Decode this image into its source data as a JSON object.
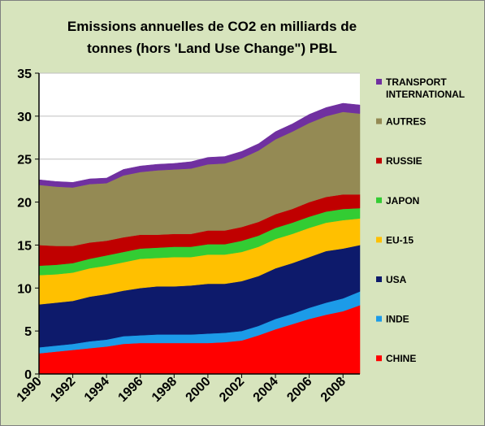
{
  "chart_data": {
    "type": "area",
    "stacked": true,
    "title_line1": "Emissions annuelles de CO2 en milliards de",
    "title_line2": "tonnes (hors  'Land Use Change\") PBL",
    "xlabel": "",
    "ylabel": "",
    "ylim": [
      0,
      35
    ],
    "yticks": [
      "0",
      "5",
      "10",
      "15",
      "20",
      "25",
      "30",
      "35"
    ],
    "xticks": [
      "1990",
      "1992",
      "1994",
      "1996",
      "1998",
      "2000",
      "2002",
      "2004",
      "2006",
      "2008"
    ],
    "x": [
      1990,
      1991,
      1992,
      1993,
      1994,
      1995,
      1996,
      1997,
      1998,
      1999,
      2000,
      2001,
      2002,
      2003,
      2004,
      2005,
      2006,
      2007,
      2008,
      2009
    ],
    "grid": "horizontal",
    "legend_position": "right",
    "series": [
      {
        "name": "CHINE",
        "color": "#ff0000",
        "values": [
          2.4,
          2.6,
          2.8,
          3.0,
          3.2,
          3.5,
          3.6,
          3.6,
          3.6,
          3.6,
          3.6,
          3.7,
          3.9,
          4.5,
          5.2,
          5.8,
          6.4,
          6.9,
          7.3,
          8.0
        ]
      },
      {
        "name": "INDE",
        "color": "#1c9be8",
        "values": [
          0.7,
          0.7,
          0.7,
          0.8,
          0.8,
          0.9,
          0.9,
          1.0,
          1.0,
          1.0,
          1.1,
          1.1,
          1.1,
          1.1,
          1.2,
          1.2,
          1.3,
          1.4,
          1.5,
          1.6
        ]
      },
      {
        "name": "USA",
        "color": "#0d1a6b",
        "values": [
          5.0,
          5.0,
          5.0,
          5.2,
          5.3,
          5.3,
          5.5,
          5.6,
          5.6,
          5.7,
          5.8,
          5.7,
          5.8,
          5.8,
          5.9,
          5.9,
          5.9,
          6.0,
          5.8,
          5.4
        ]
      },
      {
        "name": "EU-15",
        "color": "#ffc000",
        "values": [
          3.4,
          3.3,
          3.3,
          3.3,
          3.3,
          3.3,
          3.4,
          3.3,
          3.4,
          3.3,
          3.4,
          3.4,
          3.4,
          3.4,
          3.4,
          3.4,
          3.4,
          3.3,
          3.3,
          3.1
        ]
      },
      {
        "name": "JAPON",
        "color": "#33cc33",
        "values": [
          1.1,
          1.1,
          1.1,
          1.1,
          1.2,
          1.2,
          1.2,
          1.2,
          1.2,
          1.2,
          1.2,
          1.2,
          1.3,
          1.3,
          1.3,
          1.3,
          1.3,
          1.3,
          1.3,
          1.2
        ]
      },
      {
        "name": "RUSSIE",
        "color": "#c00000",
        "values": [
          2.4,
          2.2,
          2.0,
          1.9,
          1.7,
          1.7,
          1.6,
          1.5,
          1.5,
          1.5,
          1.6,
          1.6,
          1.6,
          1.6,
          1.6,
          1.6,
          1.7,
          1.7,
          1.7,
          1.6
        ]
      },
      {
        "name": "AUTRES",
        "color": "#948a54",
        "values": [
          7.0,
          6.9,
          6.8,
          6.8,
          6.7,
          7.2,
          7.3,
          7.5,
          7.5,
          7.6,
          7.7,
          7.8,
          8.0,
          8.3,
          8.7,
          9.0,
          9.2,
          9.4,
          9.6,
          9.4
        ]
      },
      {
        "name": "TRANSPORT INTERNATIONAL",
        "color": "#7030a0",
        "values": [
          0.6,
          0.6,
          0.6,
          0.6,
          0.6,
          0.7,
          0.7,
          0.7,
          0.7,
          0.8,
          0.8,
          0.8,
          0.8,
          0.8,
          0.9,
          0.9,
          1.0,
          1.0,
          1.0,
          1.0
        ]
      }
    ],
    "legend": [
      {
        "line1": "TRANSPORT",
        "line2": "INTERNATIONAL",
        "color": "#7030a0"
      },
      {
        "line1": "AUTRES",
        "line2": "",
        "color": "#948a54"
      },
      {
        "line1": "RUSSIE",
        "line2": "",
        "color": "#c00000"
      },
      {
        "line1": "JAPON",
        "line2": "",
        "color": "#33cc33"
      },
      {
        "line1": "EU-15",
        "line2": "",
        "color": "#ffc000"
      },
      {
        "line1": "USA",
        "line2": "",
        "color": "#0d1a6b"
      },
      {
        "line1": "INDE",
        "line2": "",
        "color": "#1c9be8"
      },
      {
        "line1": "CHINE",
        "line2": "",
        "color": "#ff0000"
      }
    ]
  }
}
